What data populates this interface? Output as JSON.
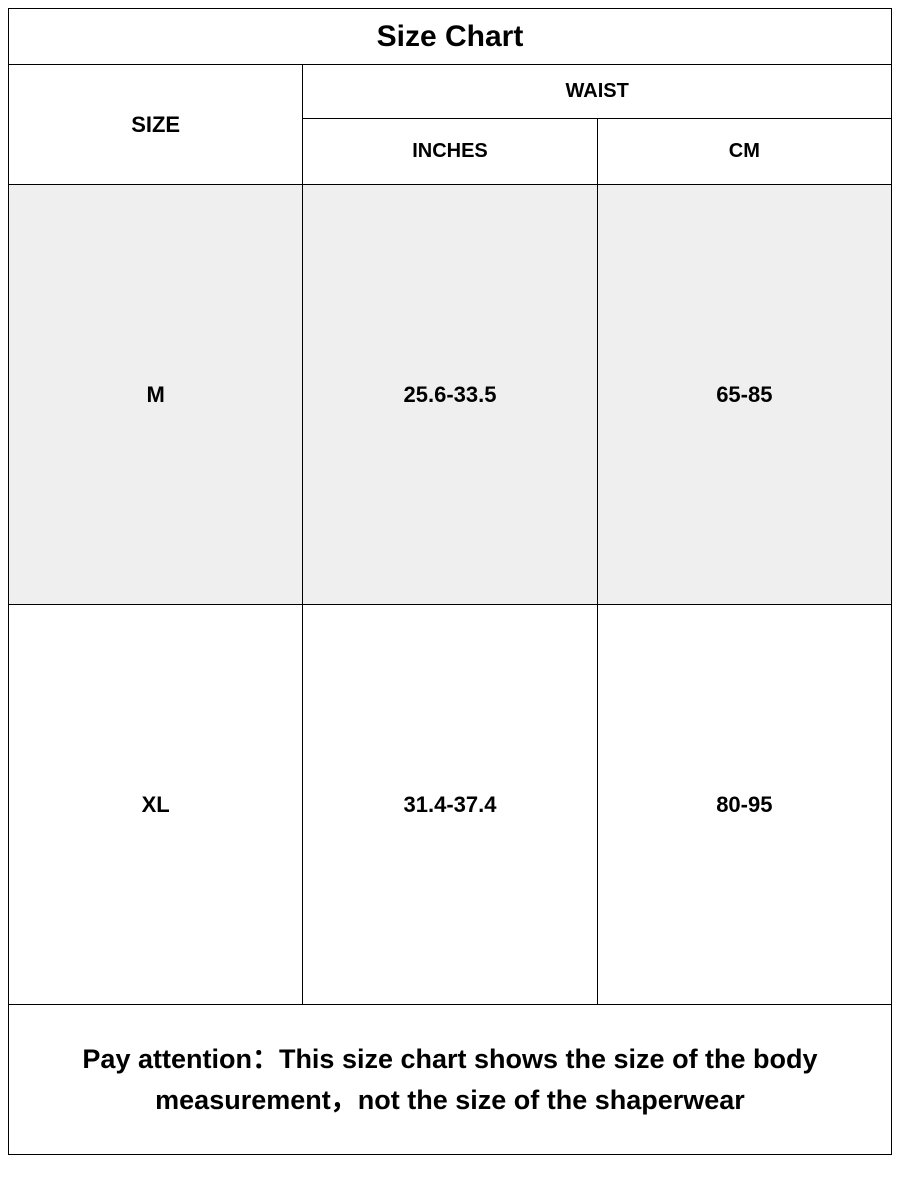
{
  "title": "Size Chart",
  "headers": {
    "size": "SIZE",
    "waist": "WAIST",
    "inches": "INCHES",
    "cm": "CM"
  },
  "rows": [
    {
      "size": "M",
      "inches": "25.6-33.5",
      "cm": "65-85"
    },
    {
      "size": "XL",
      "inches": "31.4-37.4",
      "cm": "80-95"
    }
  ],
  "footer": "Pay attention：This size chart shows the size of the body measurement，not the size of the shaperwear",
  "styling": {
    "background_color": "#ffffff",
    "alt_row_color": "#efefef",
    "border_color": "#000000",
    "text_color": "#000000",
    "title_fontsize": 30,
    "header_fontsize": 22,
    "data_fontsize": 22,
    "footer_fontsize": 27,
    "font_weight": "bold",
    "columns": 3
  }
}
